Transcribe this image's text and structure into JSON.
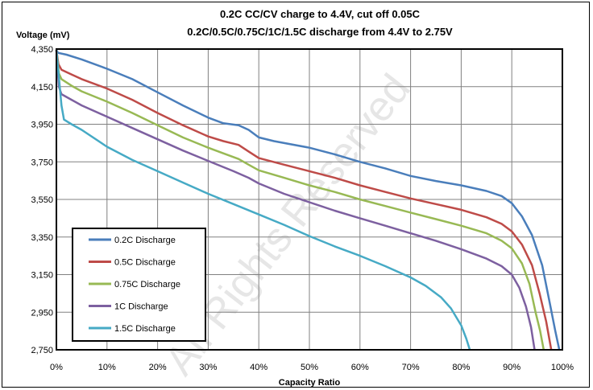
{
  "chart_data": {
    "type": "line",
    "title": "0.2C CC/CV charge to 4.4V, cut off 0.05C",
    "subtitle": "0.2C/0.5C/0.75C/1C/1.5C  discharge from 4.4V to 2.75V",
    "xlabel": "Capacity Ratio",
    "ylabel": "Voltage (mV)",
    "watermark": "All Rights Reserved",
    "xlim": [
      0,
      100
    ],
    "ylim": [
      2750,
      4350
    ],
    "xticks": [
      "0%",
      "10%",
      "20%",
      "30%",
      "40%",
      "50%",
      "60%",
      "70%",
      "80%",
      "90%",
      "100%"
    ],
    "yticks": [
      "4,350",
      "4,150",
      "3,950",
      "3,750",
      "3,550",
      "3,350",
      "3,150",
      "2,950",
      "2,750"
    ],
    "grid": true,
    "legend_position": "bottom-left",
    "series": [
      {
        "name": "0.2C Discharge",
        "color": "#4a7ebb",
        "points": [
          [
            0,
            4345
          ],
          [
            0.3,
            4330
          ],
          [
            2,
            4320
          ],
          [
            5,
            4295
          ],
          [
            10,
            4245
          ],
          [
            15,
            4190
          ],
          [
            20,
            4120
          ],
          [
            25,
            4050
          ],
          [
            30,
            3985
          ],
          [
            33,
            3955
          ],
          [
            36,
            3945
          ],
          [
            38,
            3920
          ],
          [
            40,
            3880
          ],
          [
            43,
            3860
          ],
          [
            50,
            3825
          ],
          [
            55,
            3790
          ],
          [
            60,
            3750
          ],
          [
            65,
            3715
          ],
          [
            70,
            3675
          ],
          [
            75,
            3648
          ],
          [
            80,
            3625
          ],
          [
            85,
            3595
          ],
          [
            88,
            3568
          ],
          [
            90,
            3530
          ],
          [
            92,
            3460
          ],
          [
            94,
            3360
          ],
          [
            96,
            3200
          ],
          [
            97.5,
            3000
          ],
          [
            98.6,
            2850
          ],
          [
            99.4,
            2750
          ]
        ]
      },
      {
        "name": "0.5C Discharge",
        "color": "#be4b48",
        "points": [
          [
            0,
            4345
          ],
          [
            0.4,
            4270
          ],
          [
            1,
            4240
          ],
          [
            3,
            4215
          ],
          [
            5,
            4190
          ],
          [
            10,
            4140
          ],
          [
            15,
            4080
          ],
          [
            20,
            4010
          ],
          [
            25,
            3945
          ],
          [
            30,
            3885
          ],
          [
            33,
            3860
          ],
          [
            36,
            3840
          ],
          [
            38,
            3805
          ],
          [
            40,
            3770
          ],
          [
            45,
            3735
          ],
          [
            50,
            3700
          ],
          [
            55,
            3665
          ],
          [
            60,
            3625
          ],
          [
            65,
            3590
          ],
          [
            70,
            3555
          ],
          [
            75,
            3525
          ],
          [
            80,
            3495
          ],
          [
            85,
            3455
          ],
          [
            88,
            3420
          ],
          [
            90,
            3380
          ],
          [
            92,
            3310
          ],
          [
            94,
            3200
          ],
          [
            95.5,
            3050
          ],
          [
            96.8,
            2900
          ],
          [
            97.8,
            2750
          ]
        ]
      },
      {
        "name": "0.75C Discharge",
        "color": "#98b954",
        "points": [
          [
            0,
            4345
          ],
          [
            0.5,
            4220
          ],
          [
            1,
            4190
          ],
          [
            3,
            4155
          ],
          [
            5,
            4125
          ],
          [
            10,
            4070
          ],
          [
            15,
            4010
          ],
          [
            20,
            3945
          ],
          [
            25,
            3880
          ],
          [
            30,
            3825
          ],
          [
            33,
            3795
          ],
          [
            36,
            3765
          ],
          [
            38,
            3735
          ],
          [
            40,
            3705
          ],
          [
            45,
            3665
          ],
          [
            50,
            3625
          ],
          [
            55,
            3590
          ],
          [
            60,
            3550
          ],
          [
            65,
            3515
          ],
          [
            70,
            3480
          ],
          [
            75,
            3445
          ],
          [
            80,
            3410
          ],
          [
            85,
            3370
          ],
          [
            88,
            3330
          ],
          [
            90,
            3290
          ],
          [
            92,
            3210
          ],
          [
            93.5,
            3100
          ],
          [
            94.7,
            2950
          ],
          [
            95.6,
            2850
          ],
          [
            96.3,
            2750
          ]
        ]
      },
      {
        "name": "1C Discharge",
        "color": "#7d60a0",
        "points": [
          [
            0,
            4345
          ],
          [
            0.5,
            4150
          ],
          [
            1,
            4110
          ],
          [
            3,
            4080
          ],
          [
            5,
            4050
          ],
          [
            10,
            3990
          ],
          [
            15,
            3930
          ],
          [
            20,
            3870
          ],
          [
            25,
            3810
          ],
          [
            30,
            3755
          ],
          [
            35,
            3700
          ],
          [
            38,
            3665
          ],
          [
            40,
            3635
          ],
          [
            45,
            3580
          ],
          [
            50,
            3535
          ],
          [
            55,
            3490
          ],
          [
            60,
            3450
          ],
          [
            65,
            3410
          ],
          [
            70,
            3370
          ],
          [
            75,
            3330
          ],
          [
            80,
            3285
          ],
          [
            85,
            3235
          ],
          [
            88,
            3195
          ],
          [
            90,
            3150
          ],
          [
            91.5,
            3080
          ],
          [
            92.8,
            2980
          ],
          [
            93.8,
            2870
          ],
          [
            94.5,
            2750
          ]
        ]
      },
      {
        "name": "1.5C Discharge",
        "color": "#46aac5",
        "points": [
          [
            0,
            4345
          ],
          [
            0.5,
            4200
          ],
          [
            1,
            4050
          ],
          [
            1.5,
            3975
          ],
          [
            3,
            3950
          ],
          [
            5,
            3920
          ],
          [
            10,
            3830
          ],
          [
            15,
            3760
          ],
          [
            20,
            3700
          ],
          [
            25,
            3640
          ],
          [
            30,
            3580
          ],
          [
            35,
            3525
          ],
          [
            40,
            3470
          ],
          [
            45,
            3415
          ],
          [
            50,
            3355
          ],
          [
            55,
            3300
          ],
          [
            60,
            3250
          ],
          [
            65,
            3195
          ],
          [
            70,
            3135
          ],
          [
            73,
            3090
          ],
          [
            76,
            3030
          ],
          [
            78,
            2970
          ],
          [
            80,
            2880
          ],
          [
            81,
            2810
          ],
          [
            81.7,
            2750
          ]
        ]
      }
    ]
  }
}
